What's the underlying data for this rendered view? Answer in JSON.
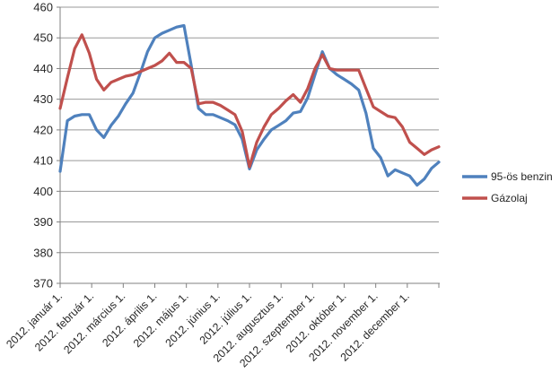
{
  "chart_data": {
    "type": "line",
    "title": "",
    "x_axis": {
      "labels": [
        "2012. január 1.",
        "2012. február 1.",
        "2012. március 1.",
        "2012. április 1.",
        "2012. május 1.",
        "2012. június 1.",
        "2012. július 1.",
        "2012. augusztus 1.",
        "2012. szeptember 1.",
        "2012. október 1.",
        "2012. november 1.",
        "2012. december 1."
      ],
      "label_rotation_deg": -45
    },
    "y_axis": {
      "min": 370,
      "max": 460,
      "tick_step": 10,
      "ticks": [
        460,
        450,
        440,
        430,
        420,
        410,
        400,
        390,
        380,
        370
      ]
    },
    "grid": true,
    "legend_position": "right",
    "point_cadence": "weekly",
    "series": [
      {
        "name": "95-ös benzin",
        "color": "#4F81BD",
        "values": [
          406.5,
          423,
          424.5,
          425,
          425,
          420,
          417.5,
          421.5,
          424.5,
          428.5,
          432,
          438.5,
          445.5,
          450,
          451.5,
          452.5,
          453.5,
          454,
          441,
          427,
          425,
          425,
          424,
          423,
          421.7,
          417,
          407.3,
          413.5,
          417,
          420,
          421.5,
          423,
          425.5,
          426,
          430.5,
          438,
          445.5,
          440,
          438,
          436.5,
          435,
          433,
          425.5,
          414,
          411,
          405,
          407,
          406,
          405,
          402,
          404,
          407.5,
          409.5
        ]
      },
      {
        "name": "Gázolaj",
        "color": "#C0504D",
        "values": [
          427,
          437,
          446.5,
          451,
          445,
          436.5,
          433,
          435.5,
          436.5,
          437.5,
          438,
          439,
          440,
          441,
          442.5,
          445,
          442,
          442,
          440,
          428.5,
          429,
          429,
          428,
          426.5,
          425,
          419.5,
          408,
          416,
          421,
          425,
          427,
          429.5,
          431.5,
          429,
          433.5,
          440,
          444.5,
          440,
          439.5,
          439.5,
          439.5,
          439.5,
          433.5,
          427.5,
          426,
          424.5,
          424,
          421,
          416,
          414,
          412,
          413.5,
          414.5
        ]
      }
    ],
    "colors": {
      "grid": "#999999",
      "axis": "#808080",
      "label": "#262626",
      "background": "#FFFFFF"
    }
  }
}
